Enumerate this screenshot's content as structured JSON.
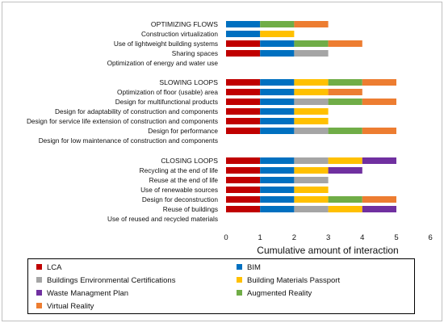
{
  "chart_data": {
    "type": "bar",
    "stacked": true,
    "orientation": "horizontal",
    "xlabel": "Cumulative amount of interaction",
    "xlim": [
      0,
      6
    ],
    "xticks": [
      "0",
      "1",
      "2",
      "3",
      "4",
      "5",
      "6"
    ],
    "grid": false,
    "legend_position": "bottom",
    "categories": [
      "OPTIMIZING FLOWS",
      "Construction virtualization",
      "Use of lightweight building systems",
      "Sharing spaces",
      "Optimization of energy and water use",
      "SLOWING  LOOPS",
      "Optimization of floor (usable) area",
      "Design for multifunctional products",
      "Design for adaptability of construction and components",
      "Design for service life extension of construction and components",
      "Design for performance",
      "Design for low maintenance of construction and components",
      "CLOSING  LOOPS",
      "Recycling at the end of life",
      "Reuse at the end of life",
      "Use of renewable sources",
      "Design for deconstruction",
      "Reuse of buildings",
      "Use of reused and recycled materials"
    ],
    "series": [
      {
        "name": "LCA",
        "color": "#c00000",
        "values": [
          0,
          0,
          1,
          1,
          0,
          1,
          1,
          1,
          1,
          1,
          1,
          0,
          1,
          1,
          1,
          1,
          1,
          1,
          0
        ]
      },
      {
        "name": "BIM",
        "color": "#0070c0",
        "values": [
          1,
          1,
          1,
          1,
          0,
          1,
          1,
          1,
          1,
          1,
          1,
          0,
          1,
          1,
          1,
          1,
          1,
          1,
          0
        ]
      },
      {
        "name": "Buildings Environmental Certifications",
        "color": "#a5a5a5",
        "values": [
          0,
          0,
          0,
          1,
          0,
          0,
          0,
          1,
          0,
          0,
          1,
          0,
          1,
          0,
          1,
          0,
          0,
          1,
          0
        ]
      },
      {
        "name": "Building Materials Passport",
        "color": "#ffc000",
        "values": [
          0,
          1,
          0,
          0,
          0,
          1,
          1,
          0,
          1,
          1,
          0,
          0,
          1,
          1,
          0,
          1,
          1,
          1,
          0
        ]
      },
      {
        "name": "Waste Managment Plan",
        "color": "#7030a0",
        "values": [
          0,
          0,
          0,
          0,
          0,
          0,
          0,
          0,
          0,
          0,
          0,
          0,
          1,
          1,
          0,
          0,
          0,
          1,
          0
        ]
      },
      {
        "name": "Augmented Reality",
        "color": "#70ad47",
        "values": [
          1,
          0,
          1,
          0,
          0,
          1,
          0,
          1,
          0,
          0,
          1,
          0,
          0,
          0,
          0,
          0,
          1,
          0,
          0
        ]
      },
      {
        "name": "Virtual Reality",
        "color": "#ed7d31",
        "values": [
          1,
          0,
          1,
          0,
          0,
          1,
          1,
          1,
          0,
          0,
          1,
          0,
          0,
          0,
          0,
          0,
          1,
          0,
          0
        ]
      }
    ]
  }
}
